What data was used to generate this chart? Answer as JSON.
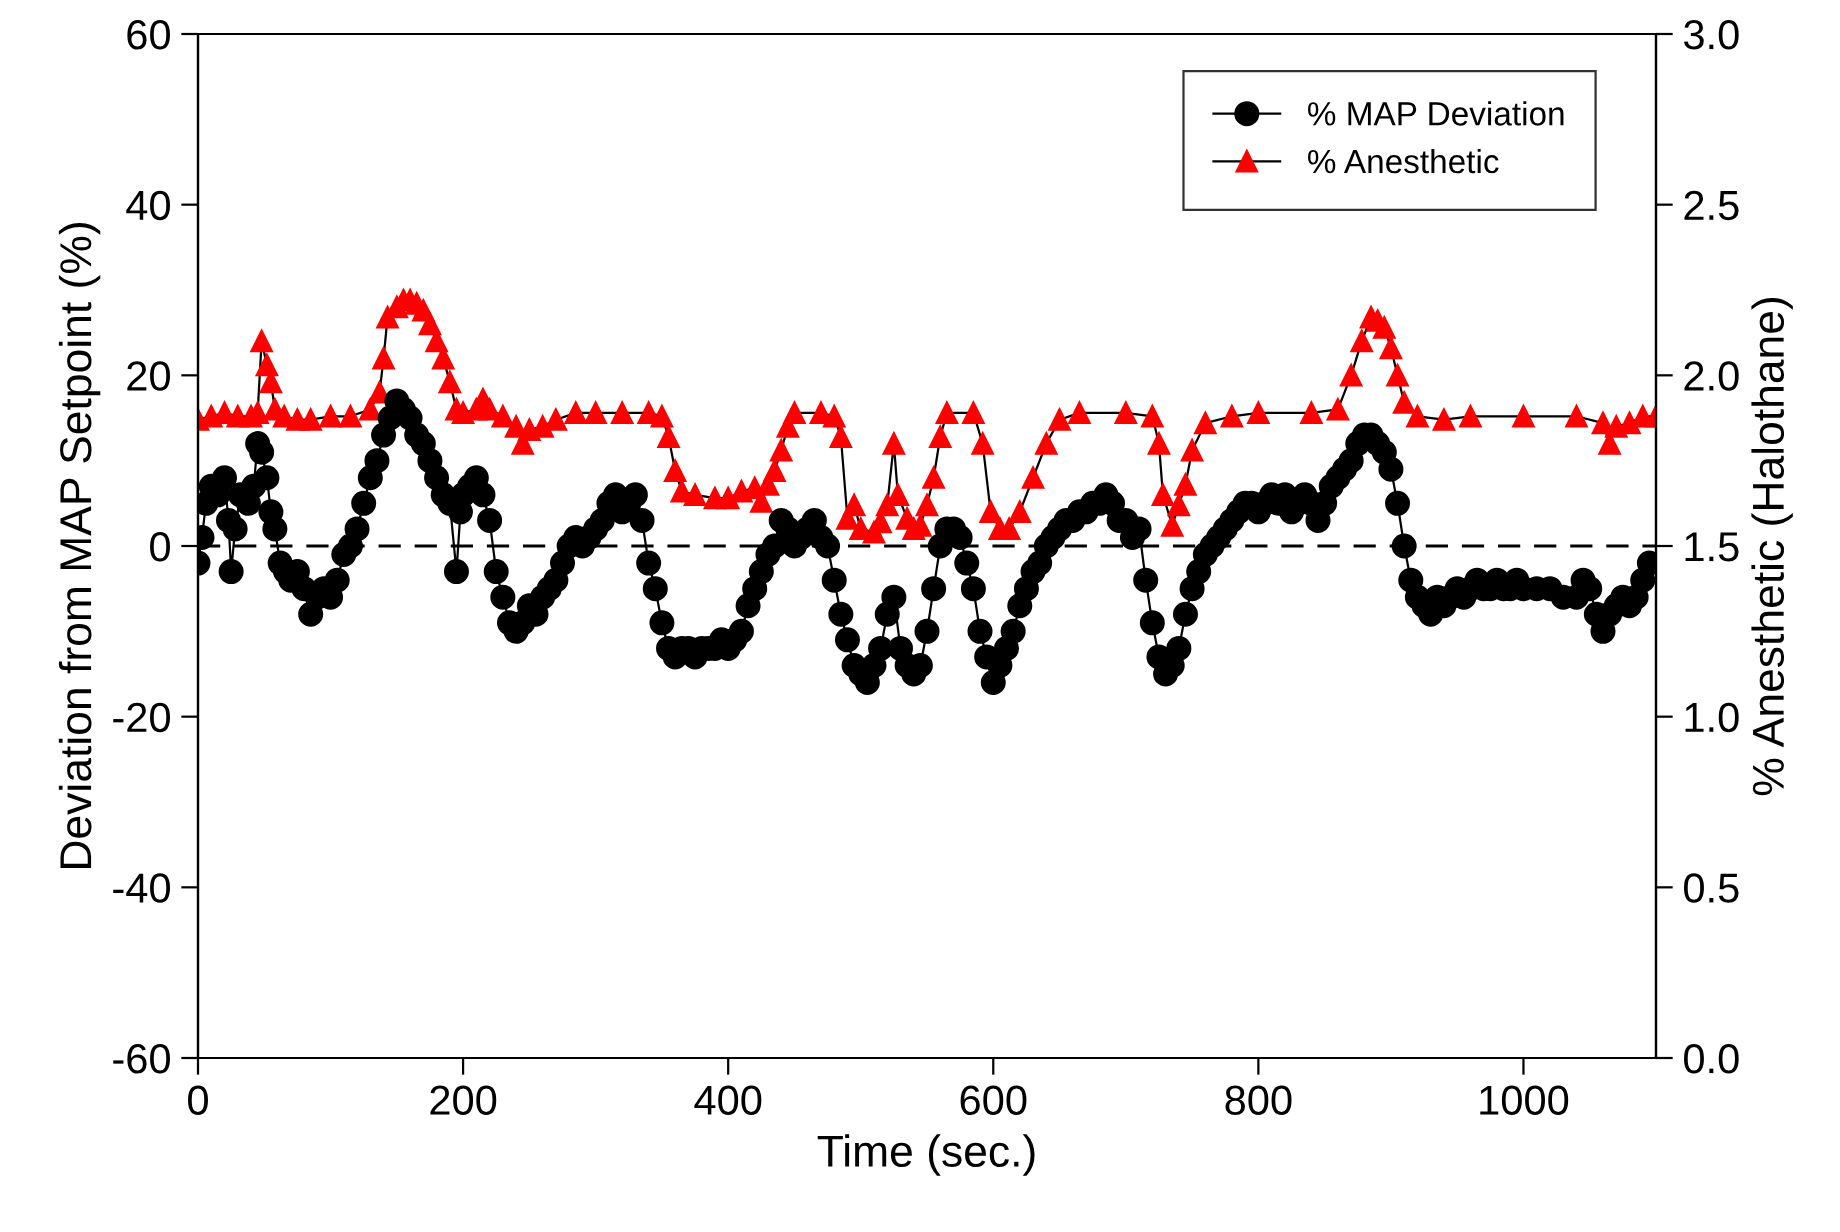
{
  "chart_data": {
    "type": "line",
    "xlabel": "Time (sec.)",
    "ylabel": "Deviation from MAP Setpoint (%)",
    "y2label": "% Anesthetic (Halothane)",
    "xlim": [
      0,
      1100
    ],
    "xticks": [
      0,
      200,
      400,
      600,
      800,
      1000
    ],
    "ylim": [
      -60,
      60
    ],
    "yticks": [
      -60,
      -40,
      -20,
      0,
      20,
      40,
      60
    ],
    "y2lim": [
      0,
      3.0
    ],
    "y2ticks": [
      {
        "value": 0,
        "label": "0.0"
      },
      {
        "value": 0.5,
        "label": "0.5"
      },
      {
        "value": 1.0,
        "label": "1.0"
      },
      {
        "value": 1.5,
        "label": "1.5"
      },
      {
        "value": 2.0,
        "label": "2.0"
      },
      {
        "value": 2.5,
        "label": "2.5"
      },
      {
        "value": 3.0,
        "label": "3.0"
      }
    ],
    "legend": "top right",
    "grid": false,
    "line_style": "solid",
    "ref_lines": [
      {
        "axis": "y",
        "value": 0,
        "label": null,
        "color": "#000000",
        "line_style": "dashed"
      }
    ],
    "series": [
      {
        "name": "% MAP Deviation",
        "color": "#000000",
        "marker": "circle",
        "x": [
          0,
          3,
          6,
          10,
          15,
          20,
          23,
          25,
          28,
          32,
          38,
          42,
          45,
          48,
          52,
          55,
          58,
          62,
          66,
          70,
          75,
          80,
          85,
          90,
          95,
          100,
          105,
          110,
          115,
          120,
          125,
          130,
          135,
          140,
          145,
          150,
          155,
          160,
          165,
          170,
          175,
          180,
          185,
          190,
          195,
          198,
          200,
          205,
          210,
          215,
          220,
          225,
          230,
          235,
          240,
          245,
          250,
          255,
          260,
          265,
          270,
          275,
          280,
          285,
          290,
          295,
          300,
          305,
          310,
          315,
          320,
          325,
          330,
          335,
          340,
          345,
          350,
          355,
          360,
          365,
          370,
          375,
          380,
          385,
          390,
          395,
          400,
          405,
          410,
          415,
          420,
          425,
          430,
          435,
          440,
          445,
          450,
          455,
          460,
          465,
          470,
          475,
          480,
          485,
          490,
          495,
          500,
          505,
          510,
          515,
          520,
          525,
          530,
          535,
          540,
          545,
          550,
          555,
          560,
          565,
          570,
          575,
          580,
          585,
          590,
          595,
          600,
          605,
          610,
          615,
          620,
          625,
          630,
          635,
          640,
          645,
          650,
          655,
          660,
          665,
          670,
          675,
          680,
          685,
          690,
          695,
          700,
          705,
          710,
          715,
          720,
          725,
          730,
          735,
          740,
          745,
          750,
          755,
          760,
          765,
          770,
          775,
          780,
          785,
          790,
          795,
          800,
          805,
          810,
          815,
          820,
          825,
          830,
          835,
          840,
          845,
          850,
          855,
          860,
          865,
          870,
          875,
          880,
          885,
          890,
          895,
          900,
          905,
          910,
          915,
          920,
          925,
          930,
          935,
          940,
          945,
          950,
          955,
          960,
          965,
          970,
          975,
          980,
          985,
          990,
          995,
          1000,
          1010,
          1020,
          1030,
          1040,
          1045,
          1050,
          1055,
          1060,
          1065,
          1070,
          1075,
          1080,
          1085,
          1090,
          1095
        ],
        "values": [
          -2,
          1,
          5,
          7,
          6,
          8,
          3,
          -3,
          2,
          6,
          5,
          7,
          12,
          11,
          8,
          4,
          2,
          -2,
          -3,
          -4,
          -3,
          -5,
          -8,
          -6,
          -5,
          -6,
          -4,
          -1,
          0,
          2,
          5,
          8,
          10,
          13,
          15,
          17,
          16,
          15,
          13,
          12,
          10,
          8,
          6,
          5,
          -3,
          4,
          6,
          7,
          8,
          6,
          3,
          -3,
          -6,
          -9,
          -10,
          -9,
          -7,
          -8,
          -6,
          -5,
          -4,
          -2,
          0,
          1,
          0,
          1,
          2,
          3,
          5,
          6,
          4,
          5,
          6,
          3,
          -2,
          -5,
          -9,
          -12,
          -13,
          -12,
          -12,
          -13,
          -12,
          -12,
          -12,
          -11,
          -12,
          -11,
          -10,
          -7,
          -5,
          -3,
          -1,
          0,
          3,
          2,
          0,
          1,
          2,
          3,
          1,
          0,
          -4,
          -8,
          -11,
          -14,
          -15,
          -16,
          -14,
          -12,
          -8,
          -6,
          -12,
          -14,
          -15,
          -14,
          -10,
          -5,
          0,
          2,
          2,
          1,
          -2,
          -5,
          -10,
          -13,
          -16,
          -14,
          -12,
          -10,
          -7,
          -5,
          -3,
          -2,
          0,
          1,
          2,
          3,
          3,
          4,
          4,
          5,
          5,
          6,
          5,
          3,
          3,
          1,
          2,
          -4,
          -9,
          -13,
          -15,
          -14,
          -12,
          -8,
          -5,
          -3,
          -1,
          0,
          1,
          2,
          3,
          4,
          5,
          5,
          4,
          5,
          6,
          5,
          6,
          4,
          5,
          6,
          5,
          3,
          5,
          7,
          8,
          9,
          10,
          12,
          13,
          13,
          12,
          11,
          9,
          5,
          0,
          -4,
          -6,
          -7,
          -8,
          -6,
          -7,
          -6,
          -5,
          -6,
          -5,
          -4,
          -5,
          -5,
          -4,
          -5,
          -5,
          -4,
          -5,
          -5,
          -5,
          -6,
          -6,
          -4,
          -5,
          -8,
          -10,
          -8,
          -7,
          -6,
          -7,
          -6,
          -4,
          -2
        ]
      },
      {
        "name": "% Anesthetic",
        "color": "#ff0000",
        "marker": "triangle",
        "axis": "y2",
        "x": [
          0,
          10,
          20,
          30,
          40,
          45,
          48,
          52,
          55,
          58,
          65,
          75,
          85,
          100,
          115,
          130,
          137,
          140,
          143,
          150,
          155,
          160,
          165,
          170,
          175,
          180,
          185,
          190,
          195,
          200,
          210,
          215,
          220,
          230,
          240,
          245,
          250,
          260,
          270,
          285,
          300,
          320,
          340,
          350,
          355,
          360,
          365,
          375,
          390,
          400,
          410,
          420,
          425,
          430,
          435,
          440,
          445,
          450,
          470,
          480,
          485,
          490,
          495,
          500,
          510,
          515,
          520,
          525,
          528,
          535,
          540,
          545,
          550,
          555,
          560,
          565,
          585,
          592,
          598,
          605,
          612,
          620,
          630,
          640,
          650,
          665,
          700,
          720,
          725,
          728,
          735,
          740,
          745,
          750,
          760,
          780,
          800,
          840,
          860,
          870,
          878,
          885,
          890,
          895,
          900,
          905,
          910,
          920,
          940,
          960,
          1000,
          1040,
          1060,
          1065,
          1070,
          1080,
          1090,
          1100
        ],
        "values": [
          1.87,
          1.88,
          1.89,
          1.88,
          1.88,
          1.89,
          2.1,
          2.03,
          1.98,
          1.9,
          1.88,
          1.87,
          1.87,
          1.88,
          1.88,
          1.9,
          1.95,
          2.05,
          2.17,
          2.2,
          2.22,
          2.22,
          2.21,
          2.19,
          2.15,
          2.1,
          2.05,
          1.98,
          1.9,
          1.89,
          1.9,
          1.93,
          1.9,
          1.88,
          1.85,
          1.8,
          1.84,
          1.85,
          1.87,
          1.89,
          1.89,
          1.89,
          1.89,
          1.88,
          1.82,
          1.72,
          1.66,
          1.65,
          1.64,
          1.64,
          1.66,
          1.67,
          1.63,
          1.68,
          1.72,
          1.78,
          1.85,
          1.89,
          1.89,
          1.88,
          1.82,
          1.58,
          1.62,
          1.55,
          1.54,
          1.57,
          1.62,
          1.8,
          1.65,
          1.58,
          1.55,
          1.56,
          1.62,
          1.7,
          1.82,
          1.89,
          1.89,
          1.8,
          1.6,
          1.55,
          1.55,
          1.6,
          1.7,
          1.8,
          1.87,
          1.89,
          1.89,
          1.88,
          1.8,
          1.65,
          1.56,
          1.62,
          1.68,
          1.78,
          1.86,
          1.88,
          1.89,
          1.89,
          1.9,
          2.0,
          2.1,
          2.17,
          2.16,
          2.14,
          2.08,
          2.0,
          1.92,
          1.88,
          1.87,
          1.88,
          1.88,
          1.88,
          1.86,
          1.8,
          1.85,
          1.86,
          1.88,
          1.88
        ]
      }
    ]
  }
}
